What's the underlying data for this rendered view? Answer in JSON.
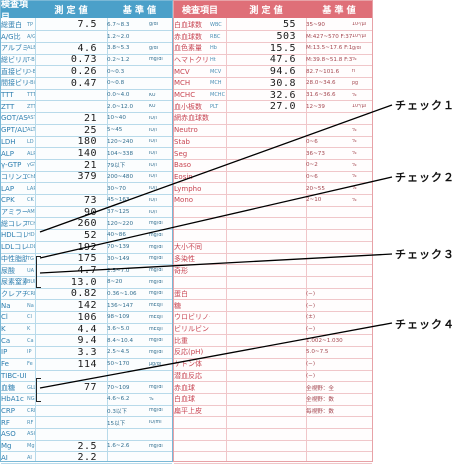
{
  "left_header": {
    "item": "検査項目",
    "value": "測 定 値",
    "ref": "基 準 値"
  },
  "right_header": {
    "item": "検査項目",
    "value": "測 定 値",
    "ref": "基 準 値"
  },
  "left_rows": [
    {
      "name": "総蛋白",
      "code": "TP",
      "val": "7.5",
      "ref": "6.7~8.3",
      "unit": "g/dl"
    },
    {
      "name": "A/G比",
      "code": "A/G",
      "val": "",
      "ref": "1.2~2.0",
      "unit": ""
    },
    {
      "name": "アルブミン",
      "code": "ALB",
      "val": "4.6",
      "ref": "3.8~5.3",
      "unit": "g/dl"
    },
    {
      "name": "総ビリルビン",
      "code": "T-Bil",
      "val": "0.73",
      "ref": "0.2~1.2",
      "unit": "mg/dl"
    },
    {
      "name": "直接ビリルビン",
      "code": "D-Bil",
      "val": "0.26",
      "ref": "0~0.3",
      "unit": ""
    },
    {
      "name": "間接ビリルビン",
      "code": "I-Bil",
      "val": "0.47",
      "ref": "0~0.8",
      "unit": ""
    },
    {
      "name": "TTT",
      "code": "TTT",
      "val": "",
      "ref": "0.0~4.0",
      "unit": "KU"
    },
    {
      "name": "ZTT",
      "code": "ZTT",
      "val": "",
      "ref": "2.0~12.0",
      "unit": "KU"
    },
    {
      "name": "GOT/AST",
      "code": "AST",
      "val": "21",
      "ref": "10~40",
      "unit": "IU/l"
    },
    {
      "name": "GPT/ALT",
      "code": "ALT",
      "val": "25",
      "ref": "5~45",
      "unit": "IU/l"
    },
    {
      "name": "LDH",
      "code": "LD",
      "val": "180",
      "ref": "120~240",
      "unit": "IU/l"
    },
    {
      "name": "ALP",
      "code": "ALP",
      "val": "140",
      "ref": "104~338",
      "unit": "IU/l"
    },
    {
      "name": "γ-GTP",
      "code": "γGT",
      "val": "21",
      "ref": "79以下",
      "unit": "IU/l"
    },
    {
      "name": "コリンエステラーゼ",
      "code": "ChE",
      "val": "379",
      "ref": "200~480",
      "unit": "IU/l"
    },
    {
      "name": "LAP",
      "code": "LAP",
      "val": "",
      "ref": "30~70",
      "unit": "IU/l"
    },
    {
      "name": "CPK",
      "code": "CK",
      "val": "73",
      "ref": "45~163",
      "unit": "IU/l"
    },
    {
      "name": "アミラーゼ",
      "code": "AMY",
      "val": "90",
      "ref": "37~125",
      "unit": "IU/l"
    },
    {
      "name": "総コレステロール",
      "code": "TCH",
      "val": "260",
      "ref": "120~220",
      "unit": "mg/dl"
    },
    {
      "name": "HDLコレステロール",
      "code": "HDL",
      "val": "52",
      "ref": "40~86",
      "unit": "mg/dl"
    },
    {
      "name": "LDLコレステロール",
      "code": "LDL",
      "val": "192",
      "ref": "70~139",
      "unit": "mg/dl"
    },
    {
      "name": "中性脂肪",
      "code": "TG",
      "val": "175",
      "ref": "30~149",
      "unit": "mg/dl"
    },
    {
      "name": "尿酸",
      "code": "UA",
      "val": "4.7",
      "ref": "2.5~7.0",
      "unit": "mg/dl"
    },
    {
      "name": "尿素窒素",
      "code": "BUN",
      "val": "13.0",
      "ref": "8~20",
      "unit": "mg/dl"
    },
    {
      "name": "クレアチニン",
      "code": "CRE",
      "val": "0.82",
      "ref": "0.36~1.06",
      "unit": "mg/dl"
    },
    {
      "name": "Na",
      "code": "Na",
      "val": "142",
      "ref": "136~147",
      "unit": "mEq/l"
    },
    {
      "name": "Cl",
      "code": "Cl",
      "val": "106",
      "ref": "98~109",
      "unit": "mEq/l"
    },
    {
      "name": "K",
      "code": "K",
      "val": "4.4",
      "ref": "3.6~5.0",
      "unit": "mEq/l"
    },
    {
      "name": "Ca",
      "code": "Ca",
      "val": "9.4",
      "ref": "8.4~10.4",
      "unit": "mg/dl"
    },
    {
      "name": "IP",
      "code": "IP",
      "val": "3.3",
      "ref": "2.5~4.5",
      "unit": "mg/dl"
    },
    {
      "name": "Fe",
      "code": "Fe",
      "val": "114",
      "ref": "50~170",
      "unit": "μg/dl"
    },
    {
      "name": "TIBC-UIBC",
      "code": "",
      "val": "",
      "ref": "",
      "unit": ""
    },
    {
      "name": "血糖",
      "code": "GLU",
      "val": "77",
      "ref": "70~109",
      "unit": "mg/dl"
    },
    {
      "name": "HbA1c",
      "code": "NGSP",
      "val": "",
      "ref": "4.6~6.2",
      "unit": "%"
    },
    {
      "name": "CRP",
      "code": "CRP",
      "val": "",
      "ref": "0.3以下",
      "unit": "mg/dl"
    },
    {
      "name": "RF",
      "code": "RF",
      "val": "",
      "ref": "15以下",
      "unit": "IU/ml"
    },
    {
      "name": "ASO",
      "code": "ASO",
      "val": "",
      "ref": "",
      "unit": ""
    },
    {
      "name": "Mg",
      "code": "Mg",
      "val": "2.5",
      "ref": "1.6~2.6",
      "unit": "mg/dl"
    },
    {
      "name": "AI",
      "code": "AI",
      "val": "2.2",
      "ref": "",
      "unit": ""
    }
  ],
  "right_rows": [
    {
      "name": "白血球数",
      "code": "WBC",
      "val": "55",
      "ref": "35~90",
      "unit": "10²/μl"
    },
    {
      "name": "赤血球数",
      "code": "RBC",
      "val": "503",
      "ref": "M:427~570 F:376~500",
      "unit": "10⁴/μl"
    },
    {
      "name": "血色素量",
      "code": "Hb",
      "val": "15.5",
      "ref": "M:13.5~17.6 F:11.3~15.2",
      "unit": "g/dl"
    },
    {
      "name": "ヘマトクリット",
      "code": "Ht",
      "val": "47.6",
      "ref": "M:39.8~51.8 F:33.4~44.9",
      "unit": "%"
    },
    {
      "name": "MCV",
      "code": "MCV",
      "val": "94.6",
      "ref": "82.7~101.6",
      "unit": "fl"
    },
    {
      "name": "MCH",
      "code": "MCH",
      "val": "30.8",
      "ref": "28.0~34.6",
      "unit": "pg"
    },
    {
      "name": "MCHC",
      "code": "MCHC",
      "val": "32.6",
      "ref": "31.6~36.6",
      "unit": "%"
    },
    {
      "name": "血小板数",
      "code": "PLT",
      "val": "27.0",
      "ref": "12~39",
      "unit": "10⁴/μl"
    },
    {
      "name": "網赤血球数",
      "code": "",
      "val": "",
      "ref": "",
      "unit": ""
    },
    {
      "name": "Neutro",
      "code": "",
      "val": "",
      "ref": "",
      "unit": "%"
    },
    {
      "name": "Stab",
      "code": "",
      "val": "",
      "ref": "0~6",
      "unit": "%"
    },
    {
      "name": "Seg",
      "code": "",
      "val": "",
      "ref": "36~73",
      "unit": "%"
    },
    {
      "name": "Baso",
      "code": "",
      "val": "",
      "ref": "0~2",
      "unit": "%"
    },
    {
      "name": "Eosin",
      "code": "",
      "val": "",
      "ref": "0~6",
      "unit": "%"
    },
    {
      "name": "Lympho",
      "code": "",
      "val": "",
      "ref": "20~55",
      "unit": "%"
    },
    {
      "name": "Mono",
      "code": "",
      "val": "",
      "ref": "2~10",
      "unit": "%"
    },
    {
      "name": "",
      "code": "",
      "val": "",
      "ref": "",
      "unit": ""
    },
    {
      "name": "",
      "code": "",
      "val": "",
      "ref": "",
      "unit": ""
    },
    {
      "name": "",
      "code": "",
      "val": "",
      "ref": "",
      "unit": ""
    },
    {
      "name": "大小不同",
      "code": "",
      "val": "",
      "ref": "",
      "unit": ""
    },
    {
      "name": "多染性",
      "code": "",
      "val": "",
      "ref": "",
      "unit": ""
    },
    {
      "name": "奇形",
      "code": "",
      "val": "",
      "ref": "",
      "unit": ""
    },
    {
      "name": "",
      "code": "",
      "val": "",
      "ref": "",
      "unit": ""
    },
    {
      "name": "蛋白",
      "code": "",
      "val": "",
      "ref": "(−)",
      "unit": ""
    },
    {
      "name": "糖",
      "code": "",
      "val": "",
      "ref": "(−)",
      "unit": ""
    },
    {
      "name": "ウロビリノーゲン",
      "code": "",
      "val": "",
      "ref": "(±)",
      "unit": ""
    },
    {
      "name": "ビリルビン",
      "code": "",
      "val": "",
      "ref": "(−)",
      "unit": ""
    },
    {
      "name": "比重",
      "code": "",
      "val": "",
      "ref": "1.002~1.030",
      "unit": ""
    },
    {
      "name": "反応(pH)",
      "code": "",
      "val": "",
      "ref": "5.0~7.5",
      "unit": ""
    },
    {
      "name": "ケトン体",
      "code": "",
      "val": "",
      "ref": "(−)",
      "unit": ""
    },
    {
      "name": "潜血反応",
      "code": "",
      "val": "",
      "ref": "(−)",
      "unit": ""
    },
    {
      "name": "赤血球",
      "code": "",
      "val": "",
      "ref": "全視野：全",
      "unit": ""
    },
    {
      "name": "白血球",
      "code": "",
      "val": "",
      "ref": "全視野：数",
      "unit": ""
    },
    {
      "name": "扁平上皮",
      "code": "",
      "val": "",
      "ref": "毎視野：数",
      "unit": ""
    },
    {
      "name": "",
      "code": "",
      "val": "",
      "ref": "",
      "unit": ""
    },
    {
      "name": "",
      "code": "",
      "val": "",
      "ref": "",
      "unit": ""
    },
    {
      "name": "",
      "code": "",
      "val": "",
      "ref": "",
      "unit": ""
    },
    {
      "name": "",
      "code": "",
      "val": "",
      "ref": "",
      "unit": ""
    }
  ],
  "checks": [
    "チェック１",
    "チェック２",
    "チェック３",
    "チェック４"
  ],
  "colors": {
    "blue": "#4ba0c9",
    "red": "#df6f78"
  }
}
